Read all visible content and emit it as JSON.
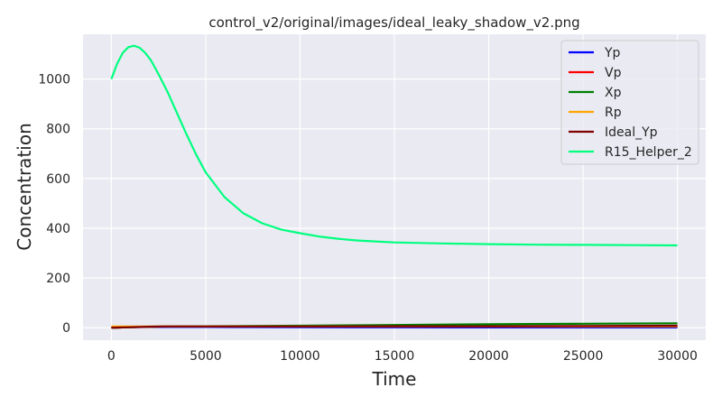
{
  "chart_data": {
    "type": "line",
    "title": "control_v2/original/images/ideal_leaky_shadow_v2.png",
    "xlabel": "Time",
    "ylabel": "Concentration",
    "xlim": [
      -1500,
      31500
    ],
    "ylim": [
      -50,
      1180
    ],
    "xticks": [
      0,
      5000,
      10000,
      15000,
      20000,
      25000,
      30000
    ],
    "xtick_labels": [
      "0",
      "5000",
      "10000",
      "15000",
      "20000",
      "25000",
      "30000"
    ],
    "yticks": [
      0,
      200,
      400,
      600,
      800,
      1000
    ],
    "ytick_labels": [
      "0",
      "200",
      "400",
      "600",
      "800",
      "1000"
    ],
    "grid": true,
    "legend_position": "top-right",
    "series": [
      {
        "name": "Yp",
        "color": "#0000ff",
        "x": [
          0,
          1000,
          2000,
          3000,
          5000,
          10000,
          15000,
          20000,
          25000,
          30000
        ],
        "y": [
          0,
          2,
          3,
          3,
          3,
          2,
          1.5,
          1,
          1,
          1
        ]
      },
      {
        "name": "Vp",
        "color": "#ff0000",
        "x": [
          0,
          1000,
          2000,
          3000,
          5000,
          10000,
          15000,
          20000,
          25000,
          30000
        ],
        "y": [
          0,
          2,
          4,
          5,
          5,
          5,
          5,
          5,
          5,
          5
        ]
      },
      {
        "name": "Xp",
        "color": "#008000",
        "x": [
          0,
          1000,
          2000,
          3000,
          5000,
          10000,
          15000,
          20000,
          25000,
          30000
        ],
        "y": [
          0,
          2,
          4,
          5,
          6,
          8,
          11,
          14,
          16,
          18
        ]
      },
      {
        "name": "Rp",
        "color": "#ffa500",
        "x": [
          0,
          1000,
          2000,
          3000,
          5000,
          10000,
          15000,
          20000,
          25000,
          30000
        ],
        "y": [
          5,
          5,
          5,
          5,
          5,
          5,
          5,
          5,
          5,
          5
        ]
      },
      {
        "name": "Ideal_Yp",
        "color": "#800000",
        "x": [
          0,
          1000,
          2000,
          3000,
          5000,
          10000,
          15000,
          20000,
          25000,
          30000
        ],
        "y": [
          0,
          2,
          4,
          5,
          5,
          5,
          6,
          6,
          7,
          8
        ]
      },
      {
        "name": "R15_Helper_2",
        "color": "#00ff7f",
        "x": [
          0,
          300,
          600,
          900,
          1200,
          1500,
          1800,
          2100,
          2500,
          3000,
          3500,
          4000,
          4500,
          5000,
          6000,
          7000,
          8000,
          9000,
          10000,
          11000,
          12000,
          13000,
          14000,
          15000,
          17500,
          20000,
          22500,
          25000,
          27500,
          30000
        ],
        "y": [
          1000,
          1060,
          1105,
          1128,
          1134,
          1126,
          1105,
          1075,
          1020,
          945,
          860,
          775,
          695,
          625,
          525,
          460,
          420,
          395,
          380,
          367,
          358,
          351,
          347,
          343,
          339,
          336,
          334,
          333,
          332,
          331
        ]
      }
    ]
  }
}
